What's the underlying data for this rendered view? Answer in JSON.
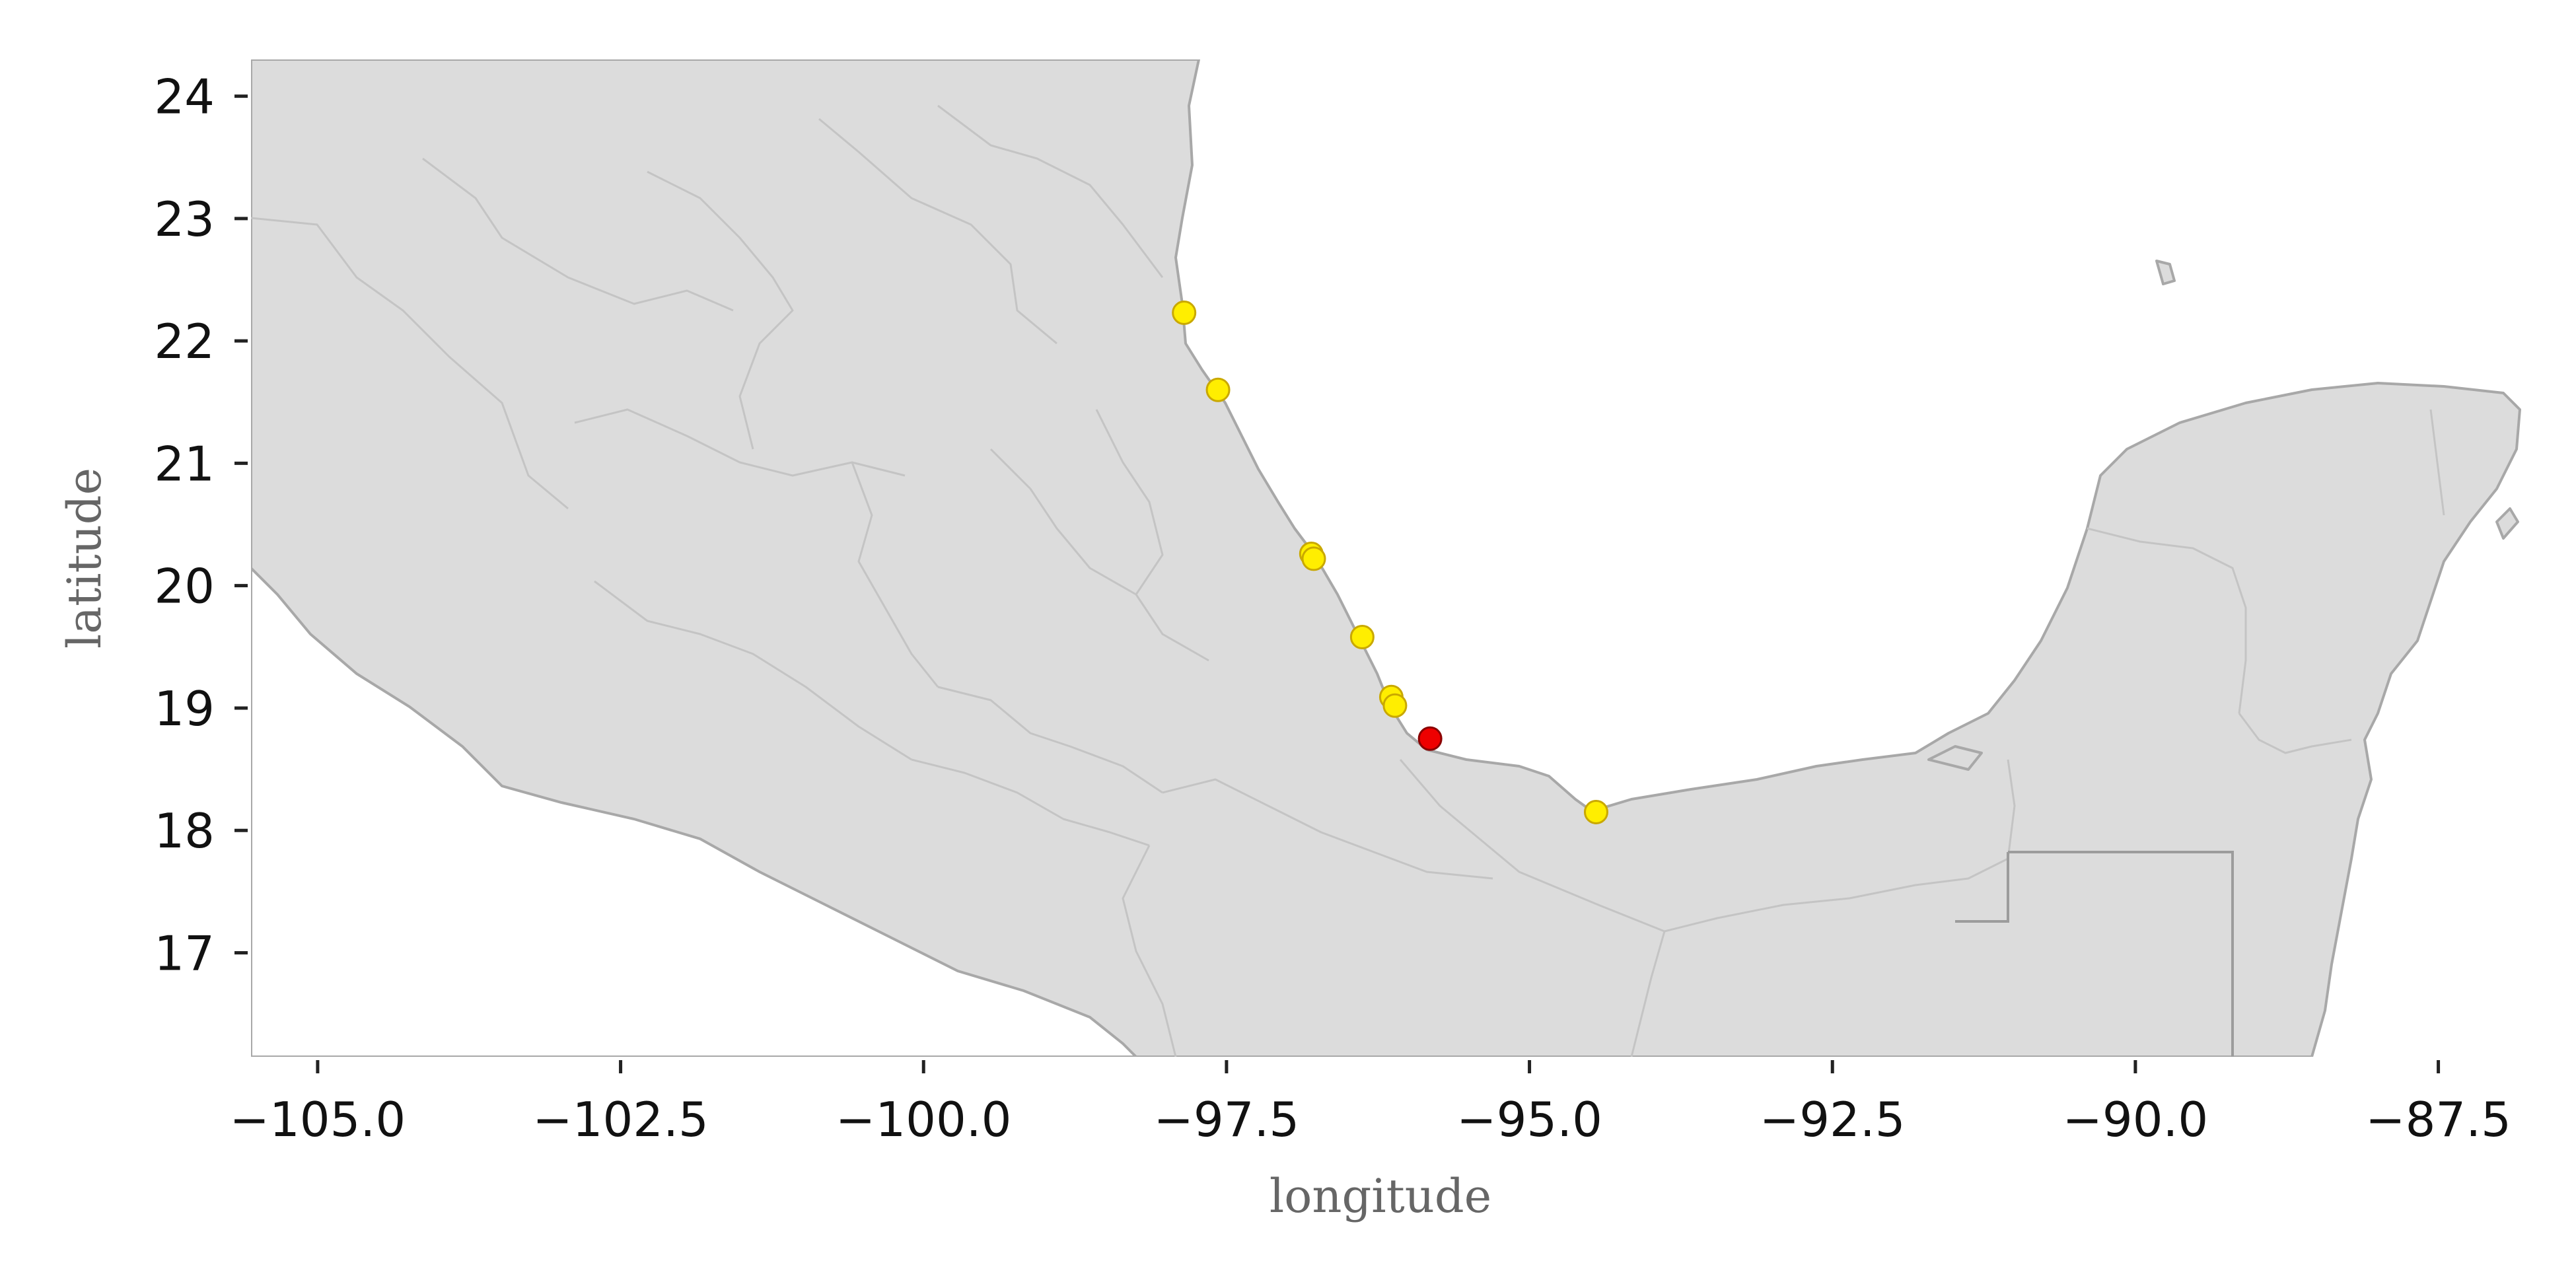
{
  "axes": {
    "xlabel": "longitude",
    "ylabel": "latitude",
    "x_ticks": [
      "−105.0",
      "−102.5",
      "−100.0",
      "−97.5",
      "−95.0",
      "−92.5",
      "−90.0",
      "−87.5"
    ],
    "y_ticks": [
      "17",
      "18",
      "19",
      "20",
      "21",
      "22",
      "23",
      "24"
    ]
  },
  "colors": {
    "land": "#dcdcdc",
    "border": "#a8a8a8",
    "marker_yellow": "#ffee00",
    "marker_red": "#ee0000"
  },
  "map": {
    "xlim": [
      -105.55,
      -86.8
    ],
    "ylim": [
      16.15,
      24.3
    ],
    "points": [
      {
        "lon": -97.85,
        "lat": 22.23,
        "color": "yellow"
      },
      {
        "lon": -97.57,
        "lat": 21.6,
        "color": "yellow"
      },
      {
        "lon": -96.8,
        "lat": 20.26,
        "color": "yellow"
      },
      {
        "lon": -96.78,
        "lat": 20.22,
        "color": "yellow"
      },
      {
        "lon": -96.38,
        "lat": 19.58,
        "color": "yellow"
      },
      {
        "lon": -96.14,
        "lat": 19.09,
        "color": "yellow"
      },
      {
        "lon": -96.11,
        "lat": 19.02,
        "color": "yellow"
      },
      {
        "lon": -95.82,
        "lat": 18.75,
        "color": "red"
      },
      {
        "lon": -94.45,
        "lat": 18.15,
        "color": "yellow"
      }
    ]
  }
}
